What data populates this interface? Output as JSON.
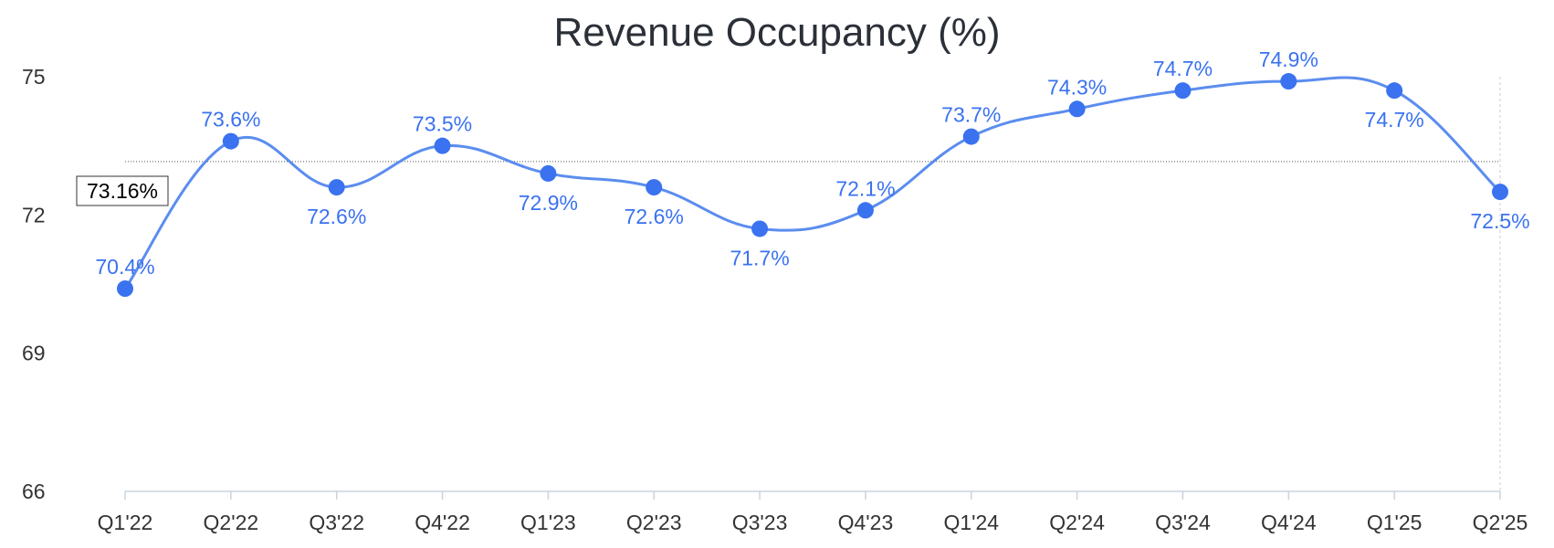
{
  "chart_data": {
    "type": "line",
    "title": "Revenue Occupancy (%)",
    "xlabel": "",
    "ylabel": "",
    "categories": [
      "Q1'22",
      "Q2'22",
      "Q3'22",
      "Q4'22",
      "Q1'23",
      "Q2'23",
      "Q3'23",
      "Q4'23",
      "Q1'24",
      "Q2'24",
      "Q3'24",
      "Q4'24",
      "Q1'25",
      "Q2'25"
    ],
    "series": [
      {
        "values": [
          70.4,
          73.6,
          72.6,
          73.5,
          72.9,
          72.6,
          71.7,
          72.1,
          73.7,
          74.3,
          74.7,
          74.9,
          74.7,
          72.5
        ],
        "labels": [
          "70.4%",
          "73.6%",
          "72.6%",
          "73.5%",
          "72.9%",
          "72.6%",
          "71.7%",
          "72.1%",
          "73.7%",
          "74.3%",
          "74.7%",
          "74.9%",
          "74.7%",
          "72.5%"
        ],
        "label_position": [
          "above",
          "above",
          "below",
          "above",
          "below",
          "below",
          "below",
          "above",
          "above",
          "above",
          "above",
          "above",
          "below",
          "below"
        ]
      }
    ],
    "yticks": [
      66,
      69,
      72,
      75
    ],
    "ylim": [
      66,
      75
    ],
    "reference_line": {
      "value": 73.16,
      "label": "73.16%"
    },
    "grid": false,
    "legend": "none",
    "colors": {
      "line": "#5b8def",
      "marker": "#3a72f0",
      "label": "#3a72f0",
      "axis": "#c8d3e0",
      "reference": "#555555"
    }
  }
}
